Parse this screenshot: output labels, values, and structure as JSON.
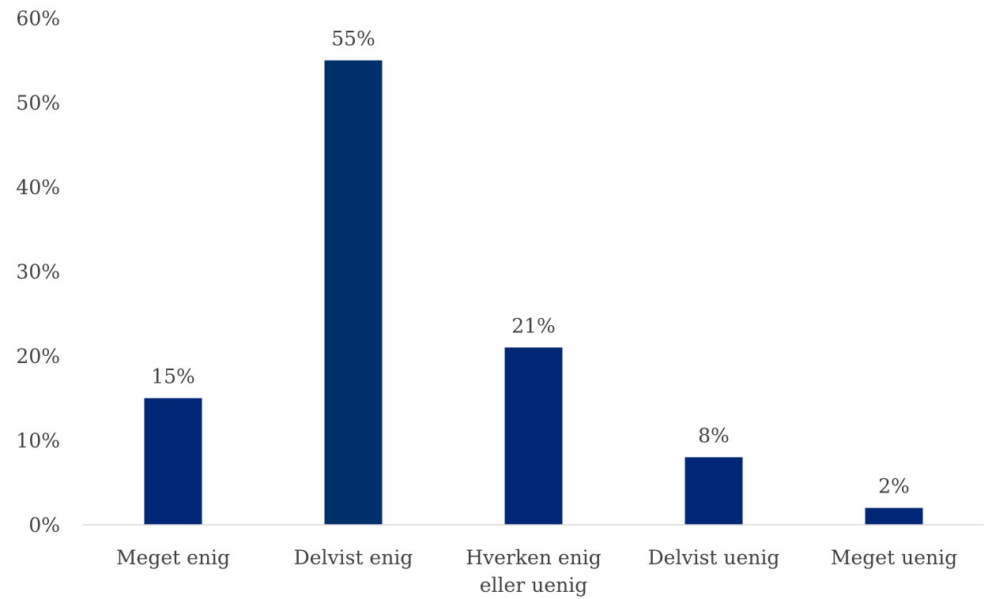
{
  "chart_data": {
    "type": "bar",
    "title": "",
    "xlabel": "",
    "ylabel": "",
    "ylim": [
      0,
      60
    ],
    "y_ticks": [
      0,
      10,
      20,
      30,
      40,
      50,
      60
    ],
    "y_tick_labels": [
      "0%",
      "10%",
      "20%",
      "30%",
      "40%",
      "50%",
      "60%"
    ],
    "categories": [
      [
        "Meget enig"
      ],
      [
        "Delvist enig"
      ],
      [
        "Hverken enig",
        "eller uenig"
      ],
      [
        "Delvist uenig"
      ],
      [
        "Meget uenig"
      ]
    ],
    "values": [
      15,
      55,
      21,
      8,
      2
    ],
    "data_labels": [
      "15%",
      "55%",
      "21%",
      "8%",
      "2%"
    ],
    "bar_colors": [
      "#002776",
      "#00306a",
      "#002776",
      "#002776",
      "#002776"
    ],
    "grid": false,
    "legend": "none"
  }
}
